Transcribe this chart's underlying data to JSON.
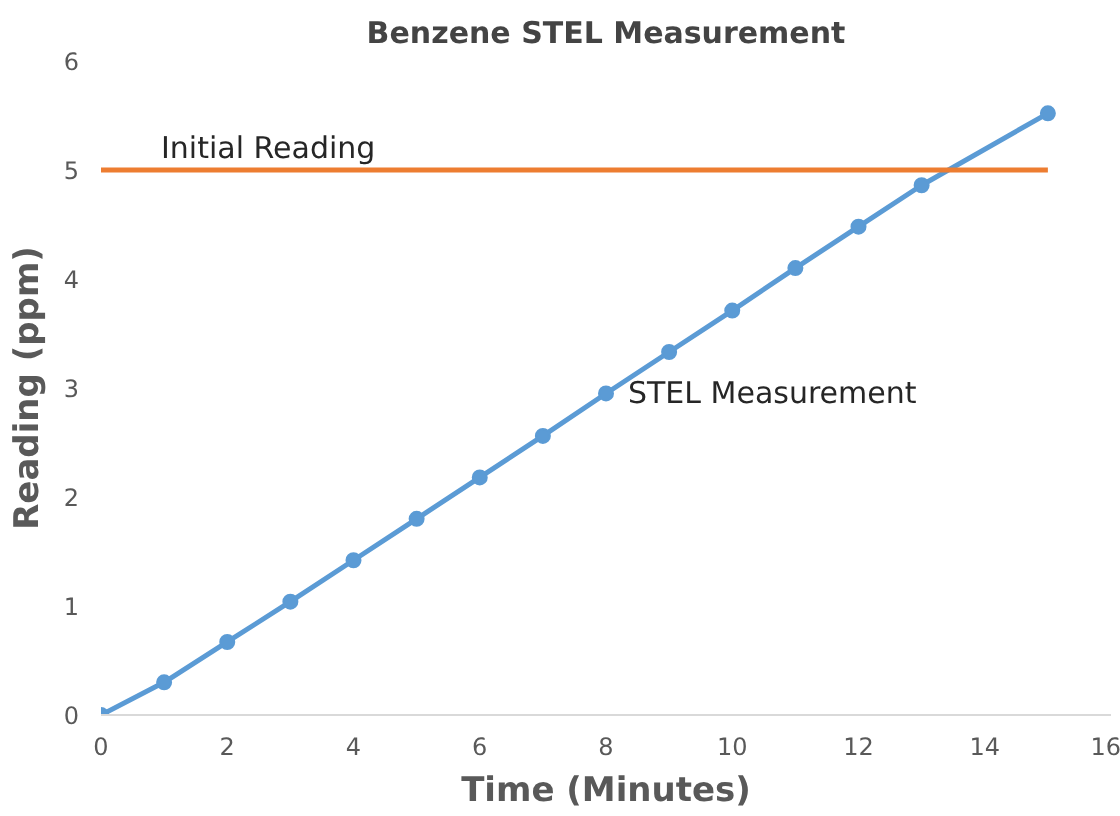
{
  "chart_data": {
    "type": "line",
    "title": "Benzene STEL Measurement",
    "xlabel": "Time (Minutes)",
    "ylabel": "Reading (ppm)",
    "xlim": [
      0,
      16
    ],
    "xticks": [
      0,
      2,
      4,
      6,
      8,
      10,
      12,
      14,
      16
    ],
    "ylim": [
      0,
      6
    ],
    "yticks": [
      0,
      1,
      2,
      3,
      4,
      5,
      6
    ],
    "grid": false,
    "legend": false,
    "series": [
      {
        "name": "STEL Measurement",
        "color": "#5b9bd5",
        "marker": "circle",
        "x": [
          0,
          1,
          2,
          3,
          4,
          5,
          6,
          7,
          8,
          9,
          10,
          11,
          12,
          13,
          15
        ],
        "values": [
          0,
          0.3,
          0.67,
          1.04,
          1.42,
          1.8,
          2.18,
          2.56,
          2.95,
          3.33,
          3.71,
          4.1,
          4.48,
          4.86,
          5.52
        ]
      },
      {
        "name": "Initial Reading",
        "color": "#ed7d31",
        "marker": "none",
        "x": [
          0,
          15
        ],
        "values": [
          5,
          5
        ]
      }
    ]
  }
}
